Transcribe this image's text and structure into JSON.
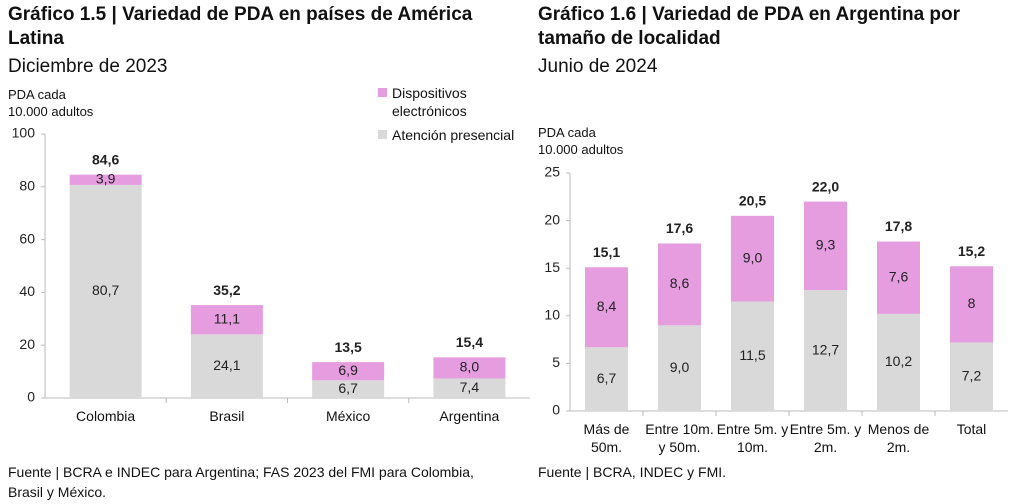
{
  "chart_data": [
    {
      "type": "stacked_bar",
      "title": "Gráfico 1.5 | Variedad de PDA en países de América Latina",
      "subtitle": "Diciembre de 2023",
      "y_label": "PDA cada 10.000 adultos",
      "categories": [
        "Colombia",
        "Brasil",
        "México",
        "Argentina"
      ],
      "series": [
        {
          "name": "Atención presencial",
          "color": "#d9d9d9",
          "values": [
            80.7,
            24.1,
            6.7,
            7.4
          ],
          "value_labels": [
            "80,7",
            "24,1",
            "6,7",
            "7,4"
          ]
        },
        {
          "name": "Dispositivos electrónicos",
          "color": "#e59de0",
          "values": [
            3.9,
            11.1,
            6.9,
            8.0
          ],
          "value_labels": [
            "3,9",
            "11,1",
            "6,9",
            "8,0"
          ]
        }
      ],
      "totals": {
        "values": [
          84.6,
          35.2,
          13.5,
          15.4
        ],
        "value_labels": [
          "84,6",
          "35,2",
          "13,5",
          "15,4"
        ]
      },
      "ylim": [
        0,
        100
      ],
      "yticks": [
        0,
        20,
        40,
        60,
        80,
        100
      ],
      "legend": "top-right",
      "source": "Fuente | BCRA e INDEC para Argentina; FAS 2023 del FMI para Colombia, Brasil y México."
    },
    {
      "type": "stacked_bar",
      "title": "Gráfico 1.6 | Variedad de PDA en Argentina por tamaño de localidad",
      "subtitle": "Junio de 2024",
      "y_label": "PDA cada 10.000 adultos",
      "categories": [
        "Más de 50m.",
        "Entre 10m. y 50m.",
        "Entre 5m. y 10m.",
        "Entre 5m. y 2m.",
        "Menos de 2m.",
        "Total"
      ],
      "series": [
        {
          "color": "#d9d9d9",
          "values": [
            6.7,
            9.0,
            11.5,
            12.7,
            10.2,
            7.2
          ],
          "value_labels": [
            "6,7",
            "9,0",
            "11,5",
            "12,7",
            "10,2",
            "7,2"
          ]
        },
        {
          "color": "#e59de0",
          "values": [
            8.4,
            8.6,
            9.0,
            9.3,
            7.6,
            8
          ],
          "value_labels": [
            "8,4",
            "8,6",
            "9,0",
            "9,3",
            "7,6",
            "8"
          ]
        }
      ],
      "totals": {
        "values": [
          15.1,
          17.6,
          20.5,
          22.0,
          17.8,
          15.2
        ],
        "value_labels": [
          "15,1",
          "17,6",
          "20,5",
          "22,0",
          "17,8",
          "15,2"
        ]
      },
      "ylim": [
        0,
        25
      ],
      "yticks": [
        0,
        5,
        10,
        15,
        20,
        25
      ],
      "source": "Fuente | BCRA, INDEC y FMI."
    }
  ]
}
